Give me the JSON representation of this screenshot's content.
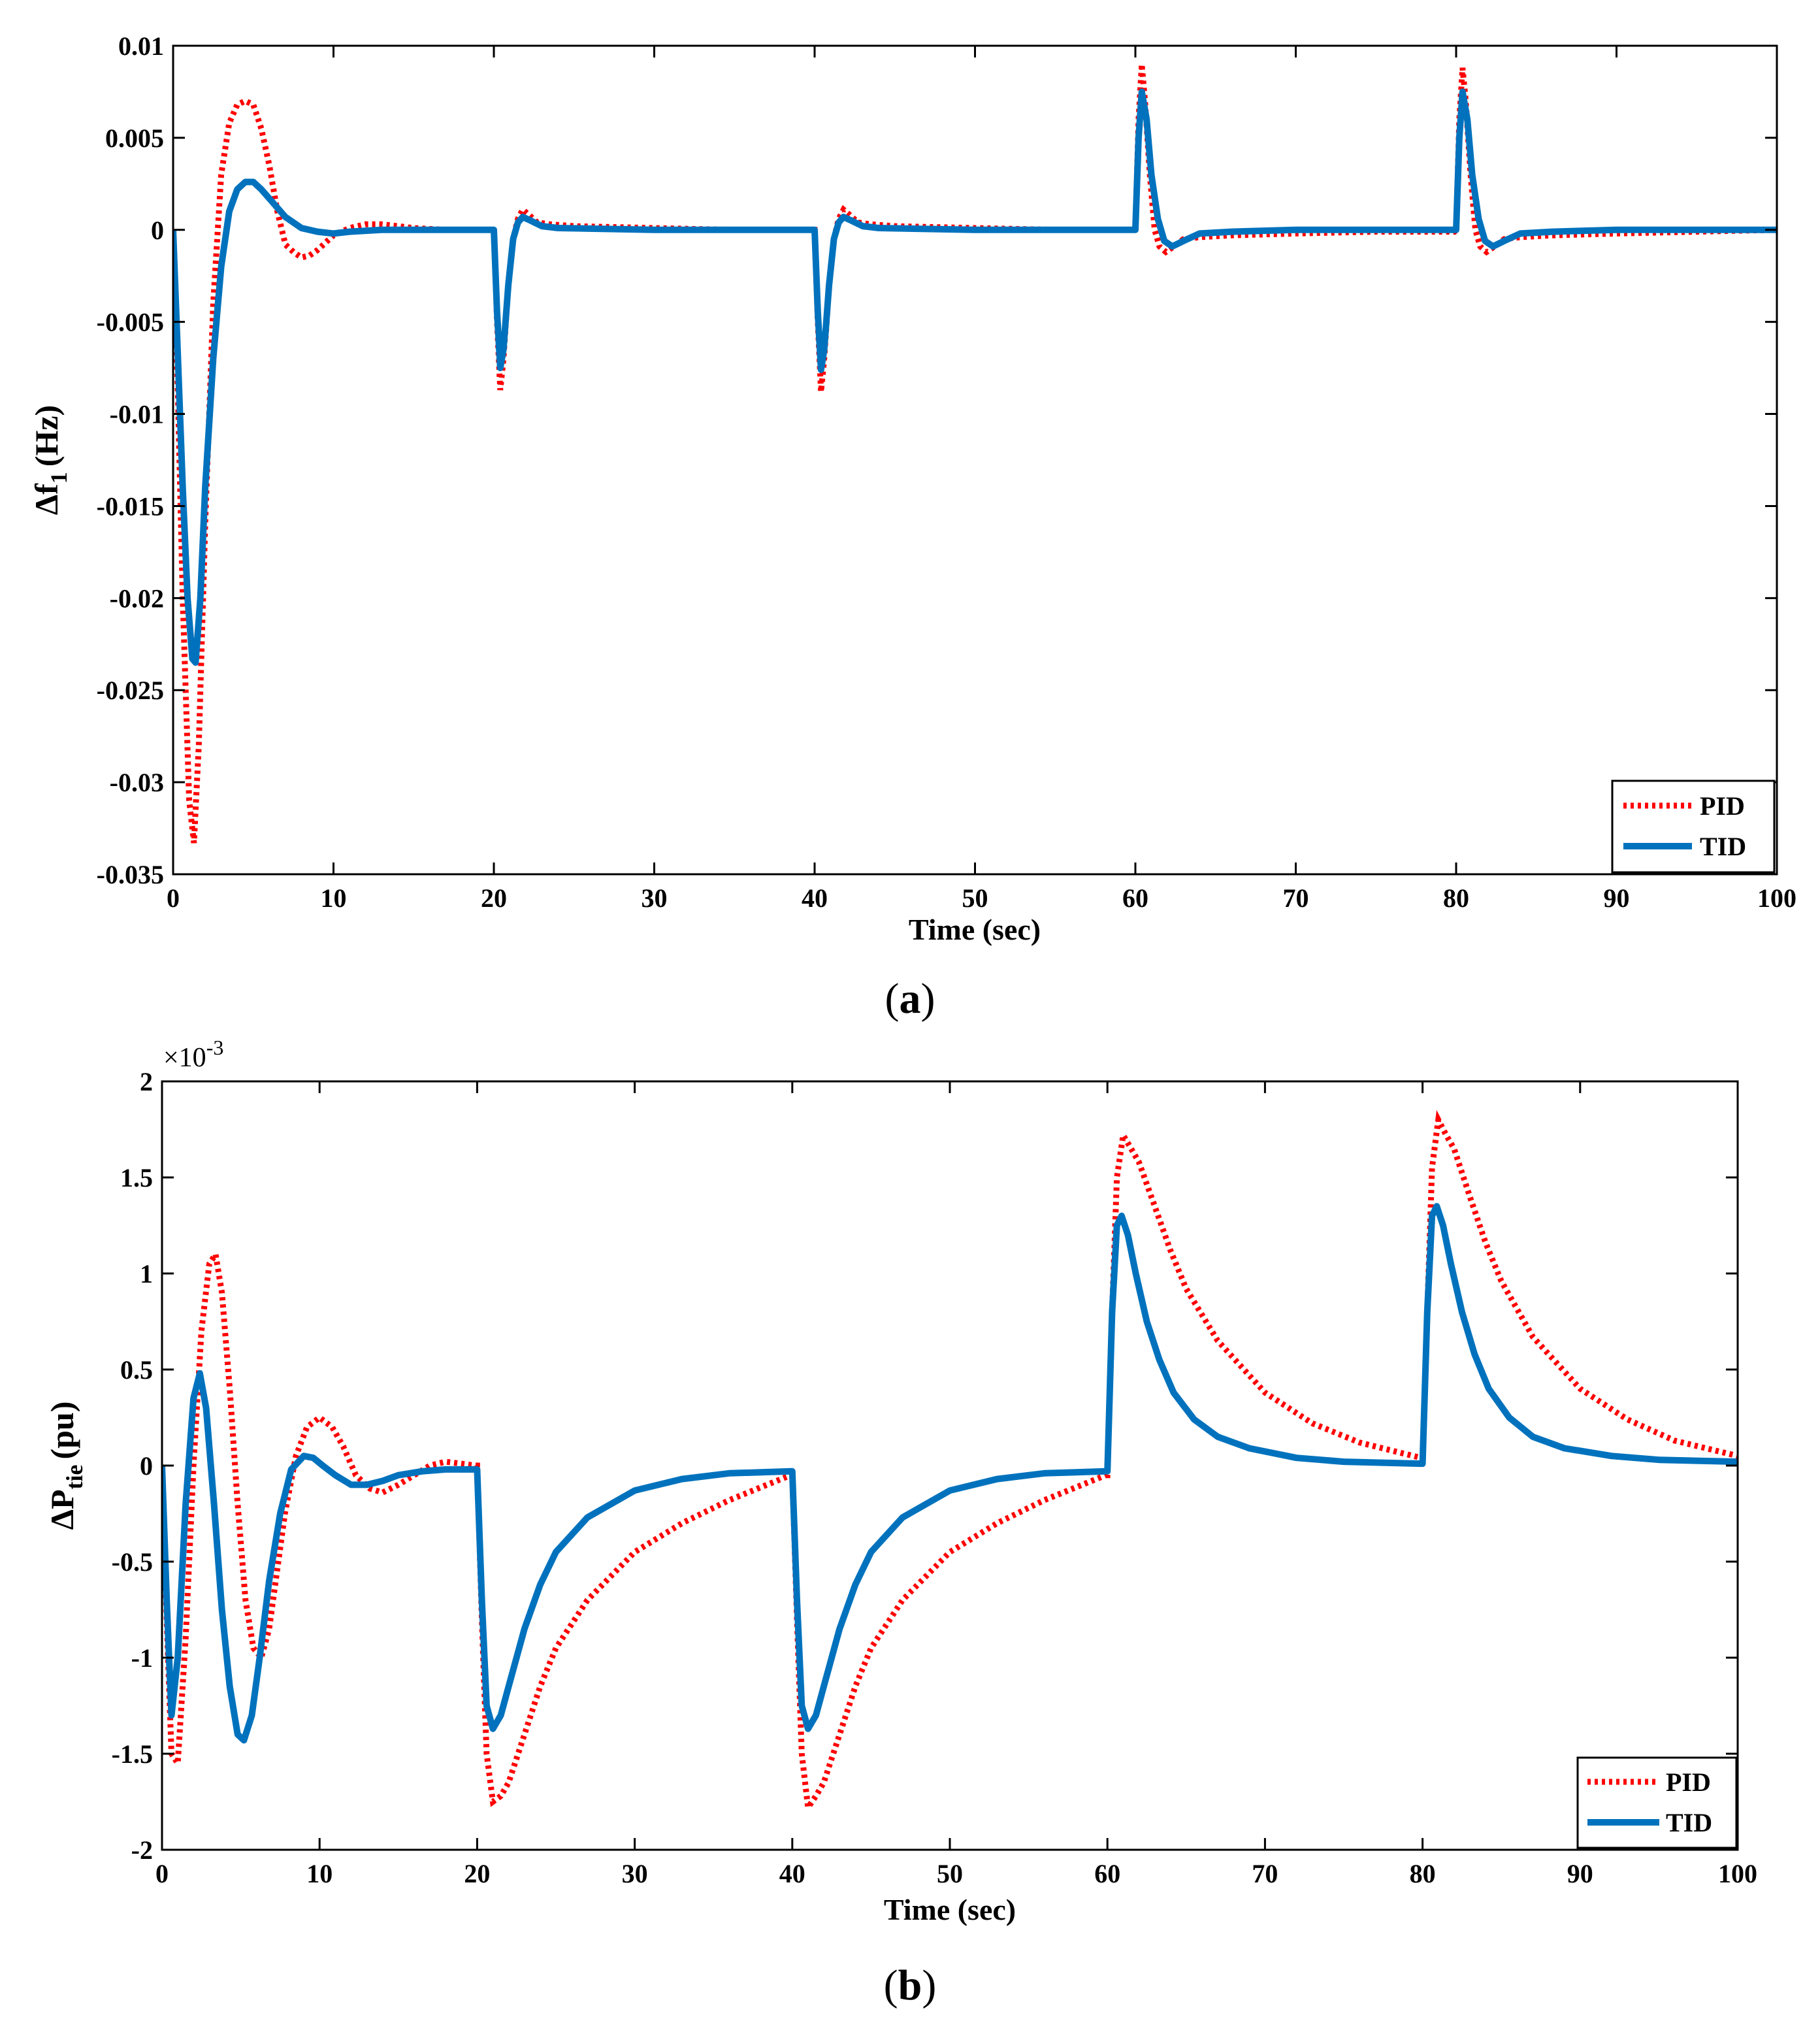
{
  "colors": {
    "pid": "#ff0000",
    "tid": "#0072bd",
    "axis": "#000000",
    "background": "#ffffff"
  },
  "chart_data": [
    {
      "id": "a",
      "type": "line",
      "caption_letter": "a",
      "xlabel": "Time (sec)",
      "ylabel": {
        "main": "Δf",
        "sub": "1",
        "unit": "(Hz)"
      },
      "xlim": [
        0,
        100
      ],
      "ylim": [
        -0.035,
        0.01
      ],
      "xticks": [
        0,
        10,
        20,
        30,
        40,
        50,
        60,
        70,
        80,
        90,
        100
      ],
      "xtick_labels": [
        "0",
        "10",
        "20",
        "30",
        "40",
        "50",
        "60",
        "70",
        "80",
        "90",
        "100"
      ],
      "yticks": [
        0.01,
        0.005,
        0,
        -0.005,
        -0.01,
        -0.015,
        -0.02,
        -0.025,
        -0.03,
        -0.035
      ],
      "ytick_labels": [
        "0.01",
        "0.005",
        "0",
        "-0.005",
        "-0.01",
        "-0.015",
        "-0.02",
        "-0.025",
        "-0.03",
        "-0.035"
      ],
      "legend": {
        "position": "bottom-right",
        "entries": [
          "PID",
          "TID"
        ]
      },
      "series": [
        {
          "name": "PID",
          "style": "dotted",
          "x": [
            0,
            0.3,
            0.6,
            1.0,
            1.3,
            1.6,
            2.0,
            2.5,
            3.0,
            3.5,
            4.0,
            4.5,
            5.0,
            5.5,
            6.0,
            6.5,
            7.0,
            7.5,
            8.0,
            8.5,
            9.0,
            10,
            11,
            12,
            13,
            14,
            15,
            17,
            19.9,
            20.0,
            20.2,
            20.4,
            20.6,
            20.9,
            21.2,
            21.5,
            21.8,
            22.2,
            22.7,
            23.5,
            25,
            30,
            35,
            39.9,
            40.0,
            40.2,
            40.4,
            40.6,
            40.9,
            41.2,
            41.5,
            41.8,
            42.2,
            42.7,
            43.5,
            45,
            50,
            55,
            59.9,
            60.0,
            60.2,
            60.4,
            60.6,
            60.9,
            61.2,
            61.5,
            61.9,
            62.4,
            63,
            64,
            66,
            70,
            75,
            79.9,
            80.0,
            80.2,
            80.4,
            80.6,
            80.9,
            81.2,
            81.5,
            81.9,
            82.4,
            83,
            84,
            86,
            90,
            95,
            100
          ],
          "y": [
            0,
            -0.009,
            -0.02,
            -0.031,
            -0.0333,
            -0.028,
            -0.016,
            -0.004,
            0.003,
            0.0058,
            0.0068,
            0.007,
            0.0068,
            0.0055,
            0.0035,
            0.001,
            -0.0008,
            -0.0012,
            -0.0015,
            -0.0014,
            -0.0011,
            -0.0003,
            0.0001,
            0.0003,
            0.0003,
            0.0002,
            0.0001,
            0.0,
            0.0,
            0,
            -0.005,
            -0.0087,
            -0.007,
            -0.003,
            -0.0005,
            0.0006,
            0.0011,
            0.0008,
            0.0004,
            0.0003,
            0.0002,
            0.0001,
            0.0,
            0.0,
            0,
            -0.005,
            -0.0088,
            -0.007,
            -0.003,
            -0.0005,
            0.0006,
            0.0011,
            0.0008,
            0.0004,
            0.0003,
            0.0002,
            0.0001,
            0.0,
            0.0,
            0,
            0.006,
            0.009,
            0.007,
            0.003,
            0.0,
            -0.0009,
            -0.0012,
            -0.0009,
            -0.0005,
            -0.0004,
            -0.0003,
            -0.0002,
            -0.0001,
            -0.0001,
            0,
            0.006,
            0.0088,
            0.007,
            0.003,
            0.0,
            -0.0009,
            -0.0012,
            -0.0009,
            -0.0005,
            -0.0004,
            -0.0003,
            -0.0002,
            -0.0001,
            0.0
          ]
        },
        {
          "name": "TID",
          "style": "solid",
          "x": [
            0,
            0.3,
            0.6,
            0.9,
            1.2,
            1.4,
            1.7,
            2.0,
            2.5,
            3.0,
            3.5,
            4.0,
            4.5,
            5.0,
            5.5,
            6.0,
            7.0,
            8.0,
            9.0,
            10,
            11,
            13,
            15,
            19.9,
            20.0,
            20.2,
            20.4,
            20.6,
            20.9,
            21.2,
            21.5,
            21.8,
            22.3,
            23,
            24,
            30,
            39.9,
            40.0,
            40.2,
            40.4,
            40.6,
            40.9,
            41.2,
            41.5,
            41.8,
            42.3,
            43,
            44,
            50,
            59.9,
            60.0,
            60.2,
            60.4,
            60.7,
            61.0,
            61.4,
            61.8,
            62.3,
            63,
            64,
            66,
            70,
            79.9,
            80.0,
            80.2,
            80.4,
            80.7,
            81.0,
            81.4,
            81.8,
            82.3,
            83,
            84,
            86,
            90,
            100
          ],
          "y": [
            0,
            -0.007,
            -0.014,
            -0.02,
            -0.0233,
            -0.0235,
            -0.02,
            -0.014,
            -0.007,
            -0.002,
            0.001,
            0.0022,
            0.0026,
            0.0026,
            0.0022,
            0.0017,
            0.0007,
            0.0001,
            -0.0001,
            -0.0002,
            -0.0001,
            0.0,
            0.0,
            0.0,
            0,
            -0.0045,
            -0.0075,
            -0.0065,
            -0.003,
            -0.0005,
            0.0004,
            0.0007,
            0.0005,
            0.0002,
            0.0001,
            0.0,
            0.0,
            0,
            -0.0045,
            -0.0076,
            -0.0065,
            -0.003,
            -0.0005,
            0.0004,
            0.0007,
            0.0005,
            0.0002,
            0.0001,
            0.0,
            0.0,
            0,
            0.005,
            0.0075,
            0.006,
            0.003,
            0.0006,
            -0.0006,
            -0.0009,
            -0.0006,
            -0.0002,
            -0.0001,
            0.0,
            0.0,
            0,
            0.005,
            0.0075,
            0.006,
            0.003,
            0.0006,
            -0.0006,
            -0.0009,
            -0.0006,
            -0.0002,
            -0.0001,
            0.0,
            0.0
          ]
        }
      ]
    },
    {
      "id": "b",
      "type": "line",
      "caption_letter": "b",
      "xlabel": "Time (sec)",
      "ylabel": {
        "main": "ΔP",
        "sub": "tie",
        "unit": "(pu)"
      },
      "multiplier": {
        "base": "×10",
        "exp": "-3"
      },
      "xlim": [
        0,
        100
      ],
      "ylim": [
        -2,
        2
      ],
      "xticks": [
        0,
        10,
        20,
        30,
        40,
        50,
        60,
        70,
        80,
        90,
        100
      ],
      "xtick_labels": [
        "0",
        "10",
        "20",
        "30",
        "40",
        "50",
        "60",
        "70",
        "80",
        "90",
        "100"
      ],
      "yticks": [
        2,
        1.5,
        1,
        0.5,
        0,
        -0.5,
        -1,
        -1.5,
        -2
      ],
      "ytick_labels": [
        "2",
        "1.5",
        "1",
        "0.5",
        "0",
        "-0.5",
        "-1",
        "-1.5",
        "-2"
      ],
      "legend": {
        "position": "bottom-right",
        "entries": [
          "PID",
          "TID"
        ]
      },
      "series": [
        {
          "name": "PID",
          "style": "dotted",
          "x": [
            0,
            0.3,
            0.6,
            1.0,
            1.5,
            2.0,
            2.5,
            3.0,
            3.4,
            3.8,
            4.3,
            4.8,
            5.3,
            5.8,
            6.3,
            6.8,
            7.3,
            7.8,
            8.5,
            9.2,
            10.0,
            10.8,
            11.5,
            12.3,
            13.2,
            14.0,
            15.0,
            16.0,
            17.0,
            18.0,
            19.0,
            19.9,
            20.0,
            20.3,
            20.6,
            21.0,
            21.5,
            22,
            23,
            24,
            25,
            27,
            30,
            33,
            36,
            39.9,
            40.0,
            40.3,
            40.6,
            41.0,
            41.5,
            42,
            43,
            44,
            45,
            47,
            50,
            53,
            56,
            59.9,
            60.0,
            60.3,
            60.6,
            61.0,
            61.5,
            62,
            63,
            64,
            65,
            67,
            70,
            73,
            76,
            79.9,
            80.0,
            80.3,
            80.6,
            81.0,
            81.5,
            82,
            83,
            84,
            85,
            87,
            90,
            93,
            96,
            100
          ],
          "y": [
            0,
            -0.8,
            -1.5,
            -1.55,
            -0.9,
            0.0,
            0.7,
            1.05,
            1.1,
            0.9,
            0.4,
            -0.2,
            -0.7,
            -0.95,
            -1.0,
            -0.85,
            -0.55,
            -0.25,
            0.05,
            0.2,
            0.25,
            0.2,
            0.1,
            -0.05,
            -0.12,
            -0.14,
            -0.1,
            -0.05,
            0.0,
            0.02,
            0.01,
            0.0,
            0.0,
            -0.8,
            -1.5,
            -1.75,
            -1.72,
            -1.65,
            -1.4,
            -1.15,
            -0.95,
            -0.7,
            -0.45,
            -0.3,
            -0.18,
            -0.05,
            -0.05,
            -0.8,
            -1.5,
            -1.78,
            -1.72,
            -1.65,
            -1.4,
            -1.15,
            -0.95,
            -0.7,
            -0.45,
            -0.3,
            -0.18,
            -0.05,
            -0.05,
            0.8,
            1.5,
            1.72,
            1.65,
            1.58,
            1.35,
            1.12,
            0.92,
            0.65,
            0.38,
            0.22,
            0.12,
            0.04,
            0.04,
            0.8,
            1.55,
            1.8,
            1.72,
            1.65,
            1.4,
            1.16,
            0.96,
            0.67,
            0.4,
            0.24,
            0.13,
            0.05
          ]
        },
        {
          "name": "TID",
          "style": "solid",
          "x": [
            0,
            0.3,
            0.6,
            1.0,
            1.5,
            2.0,
            2.4,
            2.8,
            3.3,
            3.8,
            4.3,
            4.8,
            5.2,
            5.7,
            6.2,
            6.8,
            7.5,
            8.2,
            9.0,
            9.6,
            10.2,
            11.0,
            12.0,
            13.0,
            14.0,
            15.0,
            16.5,
            18.0,
            19.9,
            20.0,
            20.3,
            20.6,
            21.0,
            21.5,
            22,
            23,
            24,
            25,
            27,
            30,
            33,
            36,
            39.9,
            40.0,
            40.3,
            40.6,
            41.0,
            41.5,
            42,
            43,
            44,
            45,
            47,
            50,
            53,
            56,
            59.9,
            60.0,
            60.3,
            60.6,
            60.9,
            61.3,
            61.8,
            62.5,
            63.3,
            64.2,
            65.5,
            67,
            69,
            72,
            75,
            79.9,
            80.0,
            80.3,
            80.6,
            80.9,
            81.3,
            81.8,
            82.5,
            83.3,
            84.2,
            85.5,
            87,
            89,
            92,
            95,
            100
          ],
          "y": [
            0,
            -0.7,
            -1.3,
            -1.0,
            -0.2,
            0.35,
            0.48,
            0.3,
            -0.2,
            -0.75,
            -1.15,
            -1.4,
            -1.43,
            -1.3,
            -1.0,
            -0.6,
            -0.25,
            -0.02,
            0.05,
            0.04,
            0.0,
            -0.05,
            -0.1,
            -0.1,
            -0.08,
            -0.05,
            -0.03,
            -0.02,
            -0.02,
            -0.02,
            -0.7,
            -1.25,
            -1.37,
            -1.3,
            -1.15,
            -0.85,
            -0.62,
            -0.45,
            -0.27,
            -0.13,
            -0.07,
            -0.04,
            -0.03,
            -0.03,
            -0.7,
            -1.25,
            -1.37,
            -1.3,
            -1.15,
            -0.85,
            -0.62,
            -0.45,
            -0.27,
            -0.13,
            -0.07,
            -0.04,
            -0.03,
            -0.03,
            0.8,
            1.25,
            1.3,
            1.2,
            1.0,
            0.75,
            0.55,
            0.38,
            0.24,
            0.15,
            0.09,
            0.04,
            0.02,
            0.01,
            0.01,
            0.8,
            1.3,
            1.35,
            1.25,
            1.05,
            0.8,
            0.58,
            0.4,
            0.25,
            0.15,
            0.09,
            0.05,
            0.03,
            0.02
          ]
        }
      ]
    }
  ]
}
